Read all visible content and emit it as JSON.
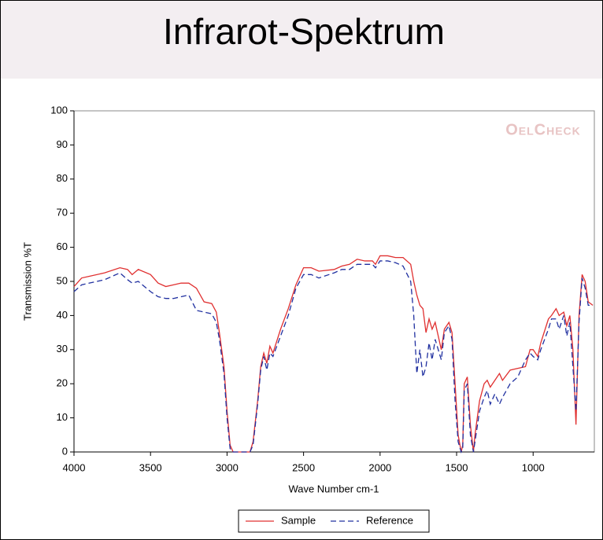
{
  "chart_data": {
    "type": "line",
    "title": "Infrarot-Spektrum",
    "watermark": "OelCheck",
    "x_label": "Wave Number cm-1",
    "y_label": "Transmission %T",
    "xlim": [
      4000,
      600
    ],
    "ylim": [
      0,
      100
    ],
    "xticks": [
      4000,
      3500,
      3000,
      2500,
      2000,
      1500,
      1000
    ],
    "yticks": [
      0,
      10,
      20,
      30,
      40,
      50,
      60,
      70,
      80,
      90,
      100
    ],
    "grid": false,
    "legend": "bottom",
    "x": [
      4000,
      3950,
      3900,
      3800,
      3700,
      3650,
      3620,
      3580,
      3500,
      3450,
      3400,
      3350,
      3300,
      3250,
      3200,
      3150,
      3100,
      3070,
      3050,
      3020,
      3000,
      2980,
      2960,
      2900,
      2850,
      2830,
      2800,
      2780,
      2760,
      2740,
      2720,
      2700,
      2650,
      2600,
      2550,
      2500,
      2450,
      2400,
      2300,
      2250,
      2200,
      2150,
      2100,
      2050,
      2030,
      2000,
      1950,
      1900,
      1850,
      1800,
      1780,
      1760,
      1740,
      1720,
      1700,
      1680,
      1660,
      1640,
      1600,
      1580,
      1550,
      1530,
      1510,
      1490,
      1470,
      1460,
      1450,
      1430,
      1410,
      1390,
      1380,
      1350,
      1320,
      1300,
      1280,
      1250,
      1220,
      1200,
      1150,
      1100,
      1050,
      1020,
      1000,
      970,
      950,
      900,
      880,
      850,
      830,
      800,
      780,
      760,
      740,
      720,
      700,
      680,
      660,
      640,
      610
    ],
    "series": [
      {
        "name": "Sample",
        "color": "#e03030",
        "line_style": "solid",
        "values": [
          48.5,
          51,
          51.5,
          52.5,
          54,
          53.5,
          52,
          53.5,
          52,
          49.5,
          48.5,
          49,
          49.5,
          49.5,
          48,
          44,
          43.5,
          41,
          35,
          25,
          12,
          2,
          0,
          0,
          0,
          3,
          15,
          25,
          29,
          26,
          31,
          29,
          36,
          42,
          49,
          54,
          54,
          53,
          53.5,
          54.5,
          55,
          56.5,
          56,
          56,
          55,
          57.5,
          57.5,
          57,
          57,
          55,
          50,
          46,
          43,
          42,
          35,
          39,
          36,
          38,
          30,
          36,
          38,
          35,
          20,
          5,
          0,
          2,
          20,
          22,
          8,
          0,
          5,
          15,
          20,
          21,
          19,
          21,
          23,
          21,
          24,
          24.5,
          25,
          30,
          30,
          28,
          32,
          39,
          40,
          42,
          40,
          41,
          37,
          40,
          30,
          8,
          40,
          52,
          50,
          44,
          43
        ]
      },
      {
        "name": "Reference",
        "color": "#2030a0",
        "line_style": "dashed",
        "values": [
          47,
          49,
          49.5,
          50.5,
          52.5,
          50.5,
          49.5,
          50,
          47,
          45.5,
          45,
          45,
          45.5,
          46,
          41.5,
          41,
          40.5,
          38,
          33,
          23,
          10,
          1,
          0,
          0,
          0,
          2,
          14,
          24,
          28,
          24,
          29,
          28,
          34,
          40,
          48,
          52,
          52,
          51,
          52.5,
          53.5,
          53.5,
          55,
          55,
          55,
          54,
          56,
          56,
          55.5,
          54.5,
          50,
          40,
          23,
          30,
          22,
          25,
          32,
          27,
          33,
          27,
          35,
          37,
          33,
          15,
          3,
          0,
          1,
          18,
          20,
          5,
          0,
          3,
          12,
          16,
          18,
          14,
          17,
          14,
          16,
          20,
          22,
          27,
          29,
          28,
          27,
          30,
          36,
          39,
          39,
          36,
          40,
          34,
          38,
          25,
          12,
          38,
          51,
          48,
          43,
          43
        ]
      }
    ]
  }
}
